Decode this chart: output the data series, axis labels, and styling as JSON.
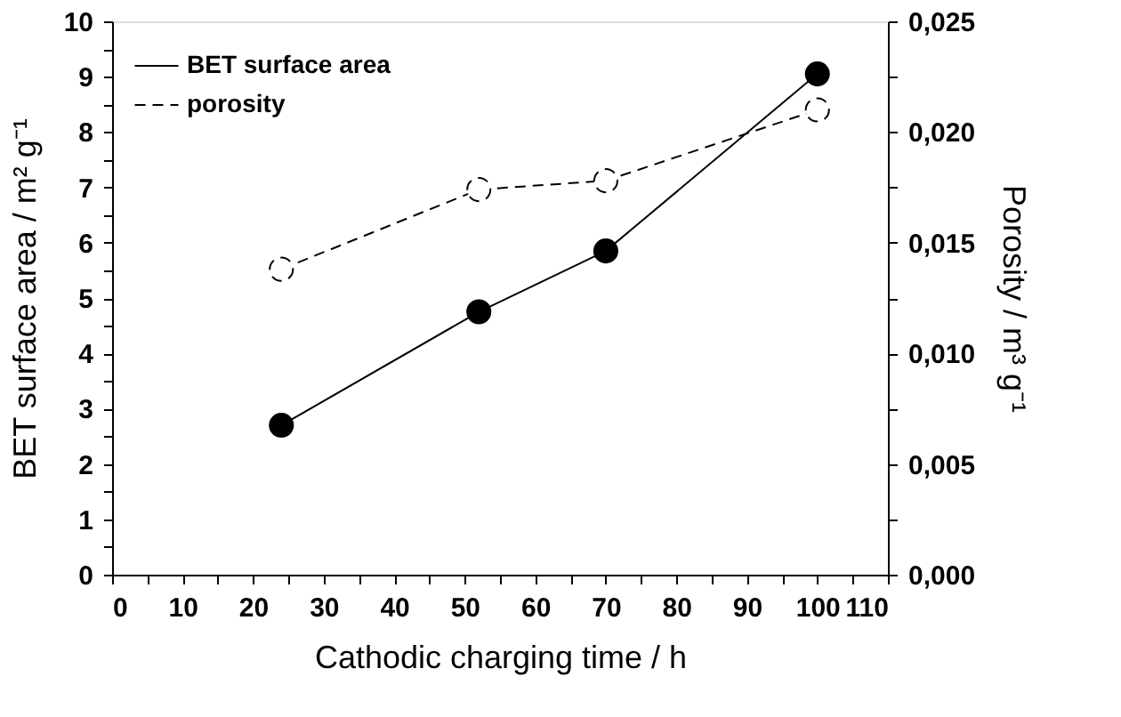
{
  "chart_data": {
    "type": "line",
    "xlabel": "Cathodic charging time / h",
    "ylabel": "BET surface area / m² g⁻¹",
    "y2label": "Porosity / m³ g⁻¹",
    "x": [
      24,
      52,
      70,
      100
    ],
    "series": [
      {
        "name": "BET surface area",
        "color": "#000000",
        "values": [
          2.7,
          4.75,
          5.85,
          9.05
        ],
        "line_style": "solid",
        "marker": "circle"
      },
      {
        "name": "porosity",
        "color": "#000000",
        "values": [
          0.0138,
          0.0174,
          0.0178,
          0.021
        ],
        "axis": "y2",
        "line_style": "dashed",
        "marker": "circle"
      }
    ],
    "xlim": [
      0,
      110
    ],
    "xticks": [
      0,
      {
        "value": 5,
        "label": null
      },
      10,
      {
        "value": 15,
        "label": null
      },
      20,
      {
        "value": 25,
        "label": null
      },
      30,
      {
        "value": 35,
        "label": null
      },
      40,
      {
        "value": 45,
        "label": null
      },
      50,
      {
        "value": 55,
        "label": null
      },
      60,
      {
        "value": 65,
        "label": null
      },
      70,
      {
        "value": 75,
        "label": null
      },
      80,
      {
        "value": 85,
        "label": null
      },
      90,
      {
        "value": 95,
        "label": null
      },
      100,
      {
        "value": 105,
        "label": null
      },
      110
    ],
    "ylim": [
      0,
      10
    ],
    "yticks": [
      0,
      {
        "value": 0.5,
        "label": null
      },
      1,
      {
        "value": 1.5,
        "label": null
      },
      2,
      {
        "value": 2.5,
        "label": null
      },
      3,
      {
        "value": 3.5,
        "label": null
      },
      4,
      {
        "value": 4.5,
        "label": null
      },
      5,
      {
        "value": 5.5,
        "label": null
      },
      6,
      {
        "value": 6.5,
        "label": null
      },
      7,
      {
        "value": 7.5,
        "label": null
      },
      8,
      {
        "value": 8.5,
        "label": null
      },
      9,
      {
        "value": 9.5,
        "label": null
      },
      10
    ],
    "y2lim": [
      0,
      0.025
    ],
    "y2ticks": [
      {
        "value": 0,
        "label": "0,000"
      },
      {
        "value": 0.0025,
        "label": null
      },
      {
        "value": 0.005,
        "label": "0,005"
      },
      {
        "value": 0.0075,
        "label": null
      },
      {
        "value": 0.01,
        "label": "0,010"
      },
      {
        "value": 0.0125,
        "label": null
      },
      {
        "value": 0.015,
        "label": "0,015"
      },
      {
        "value": 0.0175,
        "label": null
      },
      {
        "value": 0.02,
        "label": "0,020"
      },
      {
        "value": 0.0225,
        "label": null
      },
      {
        "value": 0.025,
        "label": "0,025"
      }
    ],
    "grid": false,
    "legend": "top left"
  }
}
